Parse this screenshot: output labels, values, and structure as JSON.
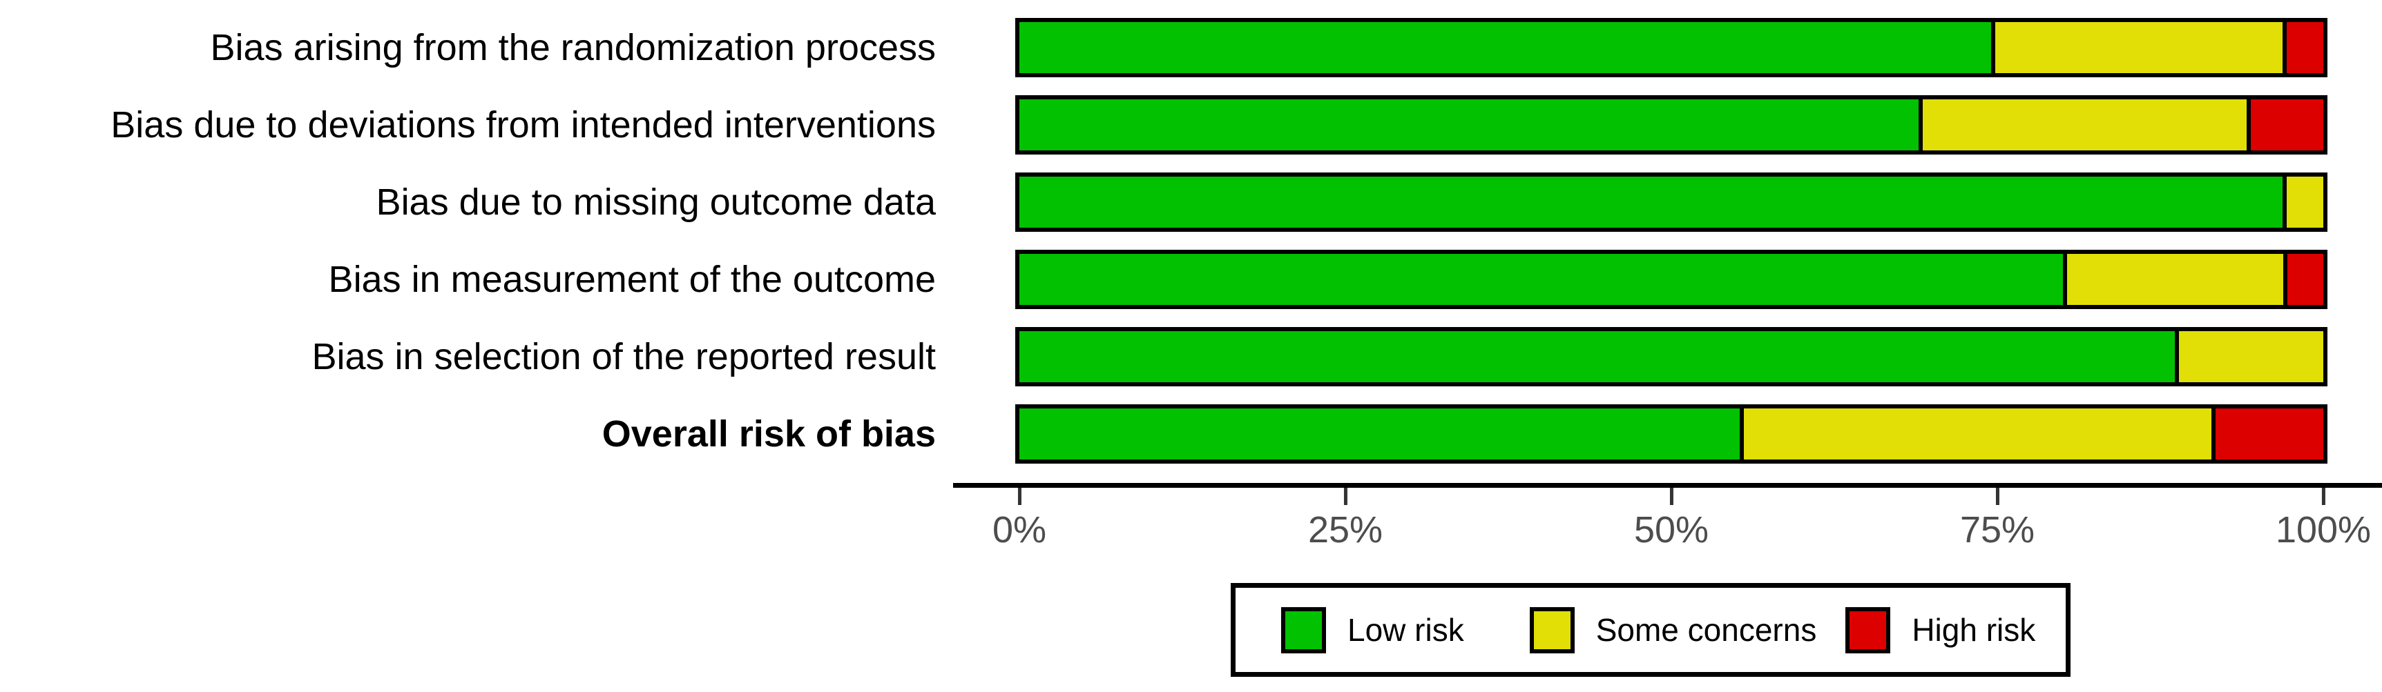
{
  "chart_data": {
    "type": "bar",
    "subtype": "horizontal-stacked-percentage",
    "title": "",
    "xlabel": "",
    "ylabel": "",
    "categories": [
      "Bias arising from the randomization process",
      "Bias due to deviations from intended interventions",
      "Bias due to missing outcome data",
      "Bias in measurement of the outcome",
      "Bias in selection of the reported result",
      "Overall risk of bias"
    ],
    "emphasized_category": "Overall risk of bias",
    "series": [
      {
        "name": "Low risk",
        "color": "#02C100",
        "values": [
          75.0,
          69.4,
          97.2,
          80.6,
          88.9,
          55.6
        ]
      },
      {
        "name": "Some concerns",
        "color": "#E2DF07",
        "values": [
          22.2,
          25.0,
          2.8,
          16.7,
          11.1,
          36.1
        ]
      },
      {
        "name": "High risk",
        "color": "#DD0000",
        "values": [
          2.8,
          5.6,
          0,
          2.8,
          0,
          8.3
        ]
      }
    ],
    "x_ticks": [
      "0%",
      "25%",
      "50%",
      "75%",
      "100%"
    ],
    "xlim": [
      0,
      100
    ],
    "grid": false,
    "legend_position": "bottom",
    "bar_outline_color": "#000000",
    "axis_line_color": "#000000",
    "tick_label_color": "#4d4d4d"
  }
}
